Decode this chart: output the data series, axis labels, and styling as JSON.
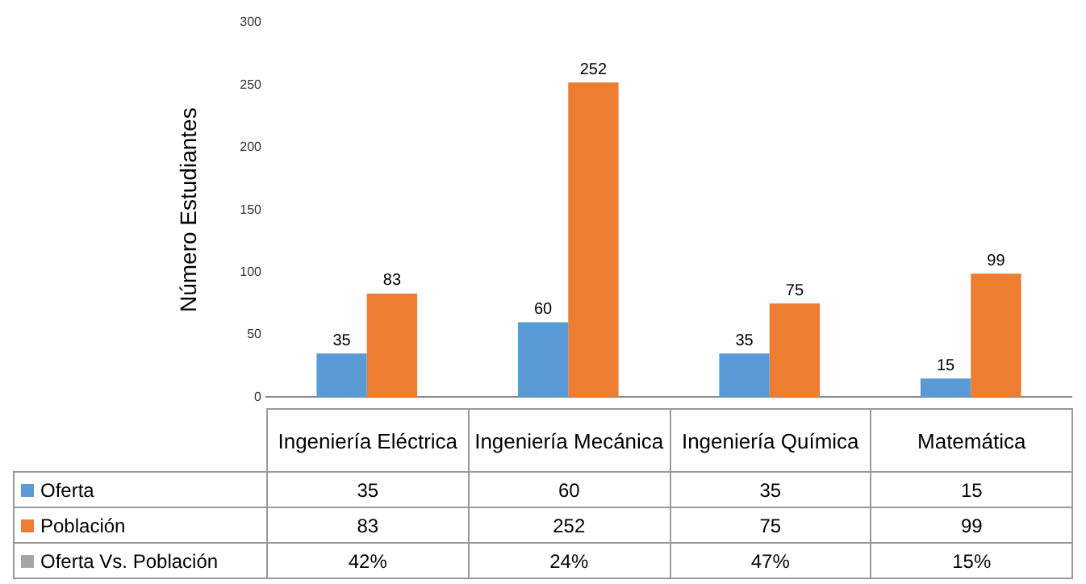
{
  "chart_data": {
    "type": "bar",
    "ylabel": "Número Estudiantes",
    "categories": [
      "Ingeniería Eléctrica",
      "Ingeniería Mecánica",
      "Ingeniería Química",
      "Matemática"
    ],
    "series": [
      {
        "name": "Oferta",
        "color": "#5b9bd5",
        "values": [
          35,
          60,
          35,
          15
        ],
        "value_labels": [
          "35",
          "60",
          "35",
          "15"
        ]
      },
      {
        "name": "Población",
        "color": "#ed7d31",
        "values": [
          83,
          252,
          75,
          99
        ],
        "value_labels": [
          "83",
          "252",
          "75",
          "99"
        ]
      },
      {
        "name": "Oferta Vs. Población",
        "color": "#a5a5a5",
        "values": [
          null,
          null,
          null,
          null
        ],
        "value_labels": [
          "42%",
          "24%",
          "47%",
          "15%"
        ]
      }
    ],
    "ylim": [
      0,
      300
    ],
    "yticks": [
      0,
      50,
      100,
      150,
      200,
      250,
      300
    ],
    "grid": false,
    "legend": "bottom",
    "annotations": [
      "35",
      "60",
      "35",
      "15",
      "83",
      "252",
      "75",
      "99"
    ]
  }
}
